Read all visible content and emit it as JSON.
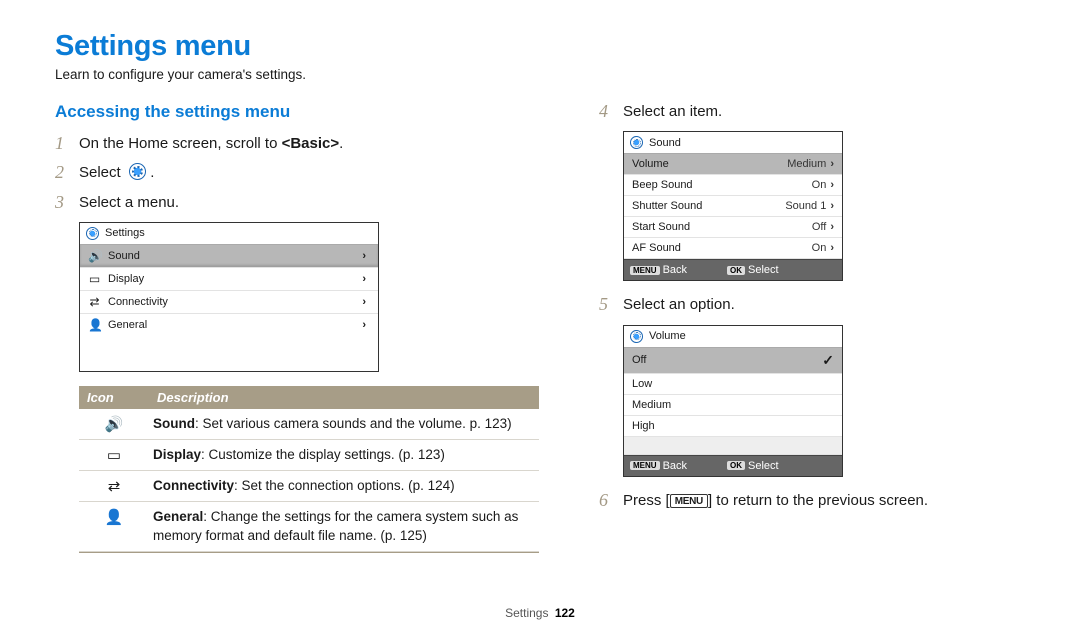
{
  "title": "Settings menu",
  "subtitle": "Learn to configure your camera's settings.",
  "section_heading": "Accessing the settings menu",
  "steps_left": [
    {
      "num": "1",
      "html": "On the Home screen, scroll to <b>&lt;Basic&gt;</b>."
    },
    {
      "num": "2",
      "html": "Select &nbsp;<span class='gear-circle'></span> ."
    },
    {
      "num": "3",
      "html": "Select a menu."
    }
  ],
  "settings_menu": {
    "header": "Settings",
    "rows": [
      {
        "icon": "🔊",
        "label": "Sound",
        "selected": true
      },
      {
        "icon": "▭",
        "label": "Display"
      },
      {
        "icon": "⇄",
        "label": "Connectivity"
      },
      {
        "icon": "👤",
        "label": "General"
      }
    ]
  },
  "desc_table": {
    "col1": "Icon",
    "col2": "Description",
    "rows": [
      {
        "icon": "🔊",
        "html": "<b>Sound</b>: Set various camera sounds and the volume. p. 123)"
      },
      {
        "icon": "▭",
        "html": "<b>Display</b>: Customize the display settings. (p. 123)"
      },
      {
        "icon": "⇄",
        "html": "<b>Connectivity</b>: Set the connection options. (p. 124)"
      },
      {
        "icon": "👤",
        "html": "<b>General</b>: Change the settings for the camera system such as memory format and default file name. (p. 125)"
      }
    ]
  },
  "steps_right": [
    {
      "num": "4",
      "html": "Select an item."
    },
    {
      "num": "5",
      "html": "Select an option."
    },
    {
      "num": "6",
      "html": "Press [<span class='menu-btn'>MENU</span>] to return to the previous screen."
    }
  ],
  "sound_menu": {
    "header": "Sound",
    "rows": [
      {
        "label": "Volume",
        "value": "Medium",
        "selected": true
      },
      {
        "label": "Beep Sound",
        "value": "On"
      },
      {
        "label": "Shutter Sound",
        "value": "Sound 1"
      },
      {
        "label": "Start Sound",
        "value": "Off"
      },
      {
        "label": "AF Sound",
        "value": "On"
      }
    ],
    "footer": {
      "back": "Back",
      "select": "Select",
      "back_key": "MENU",
      "select_key": "OK"
    }
  },
  "volume_menu": {
    "header": "Volume",
    "rows": [
      {
        "label": "Off",
        "checked": true,
        "selected": true
      },
      {
        "label": "Low"
      },
      {
        "label": "Medium"
      },
      {
        "label": "High"
      }
    ],
    "footer": {
      "back": "Back",
      "select": "Select",
      "back_key": "MENU",
      "select_key": "OK"
    }
  },
  "page_footer": {
    "section": "Settings",
    "page": "122"
  },
  "colors": {
    "accent": "#0b7cd6",
    "step_num": "#a39985",
    "table_header_bg": "#a79d87"
  }
}
